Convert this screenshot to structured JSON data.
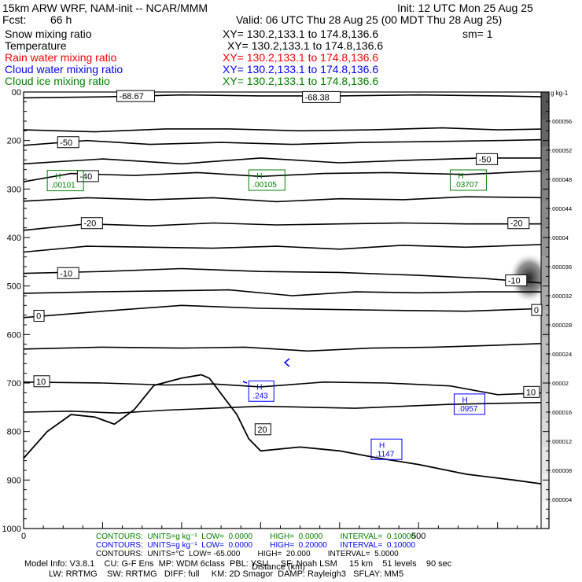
{
  "header": {
    "model": "15km ARW WRF, NAM-init -- NCAR/MMM",
    "init": "Init: 12 UTC Mon 25 Aug 25",
    "fcst_label": "Fcst:",
    "fcst_value": "66 h",
    "valid": "Valid: 06 UTC Thu 28 Aug 25 (00 MDT Thu 28 Aug 25)",
    "fields": [
      {
        "name": "Snow mixing ratio",
        "xy": "XY= 130.2,133.1 to 174.8,136.6",
        "extra": "sm= 1",
        "color": "#000000"
      },
      {
        "name": "Temperature",
        "xy": "XY= 130.2,133.1 to 174.8,136.6",
        "extra": "",
        "color": "#000000"
      },
      {
        "name": "Rain water mixing ratio",
        "xy": "XY= 130.2,133.1 to 174.8,136.6",
        "extra": "",
        "color": "#ff0000"
      },
      {
        "name": "Cloud water mixing ratio",
        "xy": "XY= 130.2,133.1 to 174.8,136.6",
        "extra": "",
        "color": "#0000ff"
      },
      {
        "name": "Cloud ice mixing ratio",
        "xy": "XY= 130.2,133.1 to 174.8,136.6",
        "extra": "",
        "color": "#008000"
      }
    ]
  },
  "chart_data": {
    "type": "contour cross-section",
    "xlabel": "Distance (km)",
    "x_ticks": [
      "0",
      "500"
    ],
    "xlim": [
      0,
      665
    ],
    "ylim": [
      1000,
      100
    ],
    "y_ticks": [
      "00",
      "200",
      "300",
      "400",
      "500",
      "600",
      "700",
      "800",
      "900",
      "1000"
    ],
    "y_tick_values": [
      100,
      200,
      300,
      400,
      500,
      600,
      700,
      800,
      900,
      1000
    ],
    "y_scale": "linear-pressure",
    "colorbar": {
      "units": "g kg-1",
      "ticks": [
        ".000056",
        ".000052",
        ".000048",
        ".000044",
        ".00004",
        ".000036",
        ".000032",
        ".000028",
        ".000024",
        ".00002",
        ".000016",
        ".000012",
        ".000008",
        ".000004"
      ],
      "values": [
        5.6e-05,
        5.2e-05,
        4.8e-05,
        4.4e-05,
        4e-05,
        3.6e-05,
        3.2e-05,
        2.8e-05,
        2.4e-05,
        2e-05,
        1.6e-05,
        1.2e-05,
        8e-06,
        4e-06
      ]
    },
    "temperature_labels": [
      {
        "text": "-68.67",
        "x": 120,
        "p": 110
      },
      {
        "text": "-68.38",
        "x": 355,
        "p": 112
      },
      {
        "text": "-50",
        "x": 45,
        "p": 205
      },
      {
        "text": "-50",
        "x": 575,
        "p": 240
      },
      {
        "text": "-40",
        "x": 70,
        "p": 275
      },
      {
        "text": "-20",
        "x": 75,
        "p": 372
      },
      {
        "text": "-20",
        "x": 615,
        "p": 372
      },
      {
        "text": "-10",
        "x": 45,
        "p": 475
      },
      {
        "text": "-10",
        "x": 612,
        "p": 490
      },
      {
        "text": "0",
        "x": 15,
        "p": 563
      },
      {
        "text": "0",
        "x": 645,
        "p": 551
      },
      {
        "text": "10",
        "x": 15,
        "p": 698
      },
      {
        "text": "10",
        "x": 635,
        "p": 720
      },
      {
        "text": "20",
        "x": 295,
        "p": 797
      }
    ],
    "extrema": [
      {
        "label": "H",
        "value": ".00101",
        "x": 30,
        "p": 281,
        "color": "#008000"
      },
      {
        "label": "H",
        "value": ".00105",
        "x": 285,
        "p": 280,
        "color": "#008000"
      },
      {
        "label": "H",
        "value": ".03707",
        "x": 540,
        "p": 280,
        "color": "#008000"
      },
      {
        "label": "H",
        "value": ".243",
        "x": 285,
        "p": 715,
        "color": "#0000ff"
      },
      {
        "label": "H",
        "value": ".0957",
        "x": 545,
        "p": 742,
        "color": "#0000ff"
      },
      {
        "label": "H",
        "value": ".1147",
        "x": 440,
        "p": 835,
        "color": "#0000ff"
      }
    ],
    "terrain": [
      [
        0,
        855
      ],
      [
        30,
        800
      ],
      [
        60,
        765
      ],
      [
        90,
        770
      ],
      [
        115,
        785
      ],
      [
        140,
        755
      ],
      [
        165,
        705
      ],
      [
        200,
        690
      ],
      [
        225,
        683
      ],
      [
        235,
        690
      ],
      [
        270,
        765
      ],
      [
        285,
        815
      ],
      [
        300,
        840
      ],
      [
        350,
        832
      ],
      [
        400,
        840
      ],
      [
        450,
        855
      ],
      [
        500,
        868
      ],
      [
        560,
        888
      ],
      [
        620,
        900
      ],
      [
        665,
        910
      ]
    ]
  },
  "footer": {
    "contours_green": "CONTOURS:  UNITS=g kg⁻¹  LOW=  0.0000        HIGH=  0.0000        INTERVAL=  0.10000",
    "contours_blue": "CONTOURS:  UNITS=g kg⁻¹  LOW=  0.0000        HIGH=  0.20000      INTERVAL=  0.10000",
    "contours_black": "CONTOURS:  UNITS=°C  LOW= -65.000        HIGH=  20.000        INTERVAL=  5.0000",
    "model_info_1": "Model Info: V3.8.1    CU: G-F Ens  MP: WDM 6class  PBL: YSU     SF: Noah LSM     15 km    51 levels    90 sec",
    "model_info_2": "LW: RRTMG    SW: RRTMG   DIFF: full     KM: 2D Smagor  DAMP: Rayleigh3   SFLAY: MM5"
  },
  "colors": {
    "green": "#008000",
    "blue": "#0000ff",
    "red": "#ff0000",
    "black": "#000000"
  }
}
